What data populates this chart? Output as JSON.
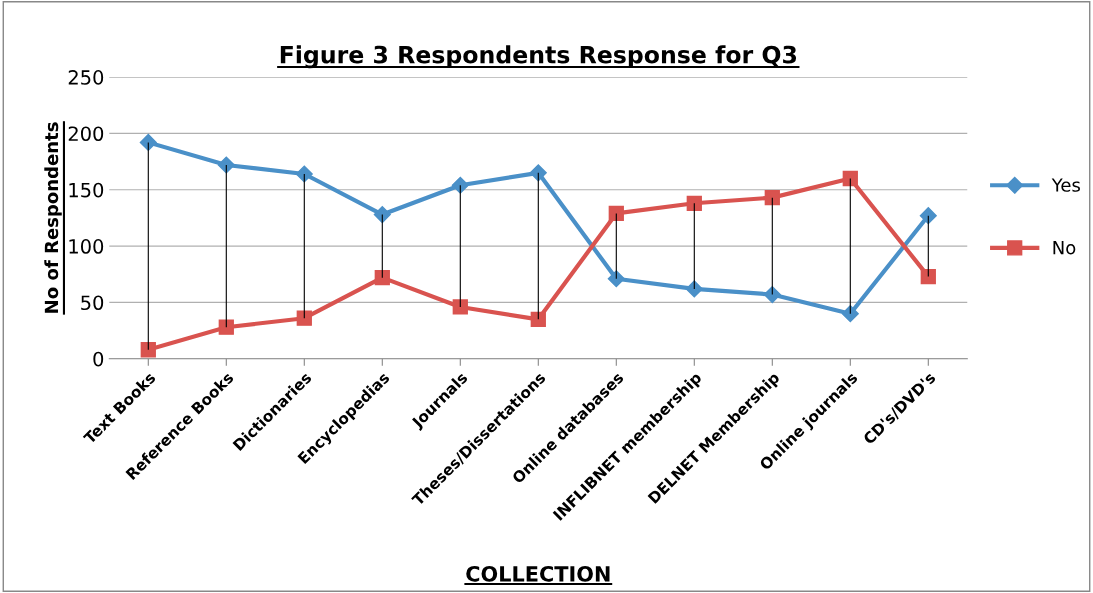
{
  "chart_data": {
    "type": "line",
    "title": "Figure 3 Respondents Response for Q3",
    "xlabel": "COLLECTION",
    "ylabel": "No of Respondents",
    "categories": [
      "Text Books",
      "Reference Books",
      "Dictionaries",
      "Encyclopedias",
      "Journals",
      "Theses/Dissertations",
      "Online databases",
      "INFLIBNET membership",
      "DELNET Membership",
      "Online journals",
      "CD's/DVD's"
    ],
    "series": [
      {
        "name": "Yes",
        "color": "#4a90c8",
        "marker": "diamond",
        "values": [
          192,
          172,
          164,
          128,
          154,
          165,
          71,
          62,
          57,
          40,
          127
        ],
        "errors": [
          [
            8,
            192
          ],
          [
            28,
            172
          ],
          [
            36,
            164
          ],
          [
            72,
            128
          ],
          [
            46,
            154
          ],
          [
            35,
            165
          ],
          [
            71,
            129
          ],
          [
            62,
            138
          ],
          [
            57,
            143
          ],
          [
            40,
            160
          ],
          [
            73,
            127
          ]
        ]
      },
      {
        "name": "No",
        "color": "#d9534f",
        "marker": "square",
        "values": [
          8,
          28,
          36,
          72,
          46,
          35,
          129,
          138,
          143,
          160,
          73
        ]
      }
    ],
    "ylim": [
      0,
      250
    ],
    "yticks": [
      0,
      50,
      100,
      150,
      200,
      250
    ],
    "grid": "y",
    "legend": "right",
    "line_style": "solid"
  }
}
